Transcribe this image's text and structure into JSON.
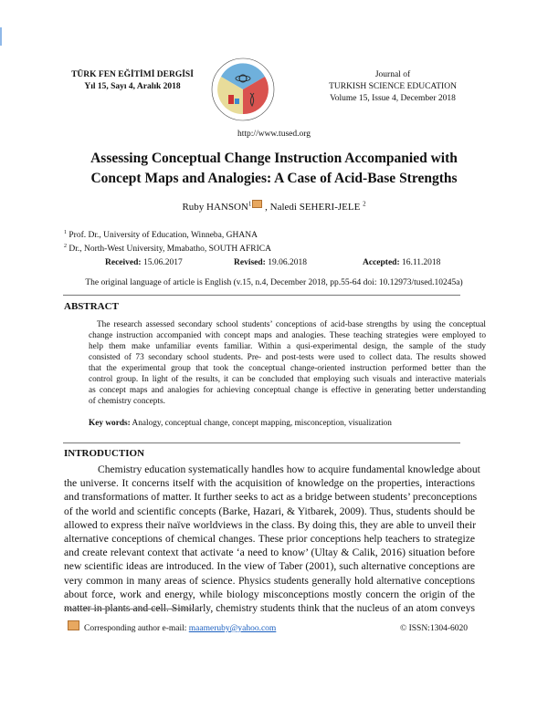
{
  "header": {
    "left_title": "TÜRK FEN EĞİTİMİ DERGİSİ",
    "left_issue": "Yıl 15, Sayı 4, Aralık 2018",
    "right_line1": "Journal of",
    "right_line2": "TURKISH SCIENCE EDUCATION",
    "right_line3": "Volume 15, Issue 4, December 2018",
    "logo_ring_text": "TÜRK FEN EĞİTİMİ DERGİSİ · JOURNAL OF TURKISH SCIENCE EDUCATION",
    "url": "http://www.tused.org"
  },
  "article": {
    "title_line1": "Assessing Conceptual Change Instruction Accompanied with",
    "title_line2": "Concept Maps and Analogies: A Case of Acid-Base Strengths",
    "author1": "Ruby HANSON",
    "author1_sup": "1",
    "author2": ", Naledi SEHERI-JELE",
    "author2_sup": "2",
    "affil1_sup": "1",
    "affil1": "Prof. Dr., University of Education, Winneba, GHANA",
    "affil2_sup": "2",
    "affil2": "Dr., North-West University, Mmabatho, SOUTH AFRICA",
    "received_label": "Received:",
    "received": "15.06.2017",
    "revised_label": "Revised:",
    "revised": "19.06.2018",
    "accepted_label": "Accepted:",
    "accepted": "16.11.2018",
    "language_note": "The original language of article is English (v.15, n.4, December 2018, pp.55-64 doi: 10.12973/tused.10245a)"
  },
  "abstract": {
    "heading": "ABSTRACT",
    "lines": [
      "The research assessed secondary school students’ conceptions of acid-base strengths by using the conceptual",
      "change instruction accompanied with concept maps and analogies. These teaching strategies were employed to",
      "help them make unfamiliar events familiar. Within a qusi-experimental design, the sample of the study",
      "consisted of 73 secondary school students. Pre- and post-tests were used to collect data. The results showed",
      "that the experimental group that took the conceptual change-oriented instruction performed better than the",
      "control group. In light of the results, it can be concluded that employing such visuals and interactive materials",
      "as concept maps and analogies for achieving conceptual change is effective in generating better understanding",
      "of chemistry concepts."
    ],
    "keywords_label": "Key words:",
    "keywords": "Analogy, conceptual change, concept mapping, misconception, visualization"
  },
  "introduction": {
    "heading": "INTRODUCTION",
    "lines": [
      "Chemistry education systematically handles how to acquire fundamental knowledge about",
      "the universe. It concerns itself with the acquisition of knowledge on the properties, interactions",
      "and transformations of matter. It further seeks to act as a bridge between students’ preconceptions",
      "of the world and scientific concepts (Barke, Hazari, & Yitbarek, 2009). Thus, students should be",
      "allowed to express their naïve worldviews in the class. By doing this, they are able to unveil their",
      "alternative conceptions of chemical changes. These prior conceptions help teachers to strategize",
      "and create relevant context that activate ‘a need to know’ (Ultay & Calik, 2016) situation before",
      "new scientific ideas are introduced. In the view of Taber (2001), such alternative conceptions are",
      "very common in many areas of science. Physics students generally hold alternative conceptions",
      "about force, work and energy, while biology misconceptions mostly concern the origin of the",
      "matter in plants and cell. Similarly, chemistry students think that the nucleus of an atom conveys"
    ]
  },
  "footer": {
    "corresponding_label": "Corresponding author e-mail:",
    "email": "maameruby@yahoo.com",
    "issn": "© ISSN:1304-6020"
  },
  "colors": {
    "link": "#1a5fc0",
    "logo_blue": "#6fb0dc",
    "logo_red": "#d9534f",
    "logo_yellow": "#e8dc9a"
  }
}
